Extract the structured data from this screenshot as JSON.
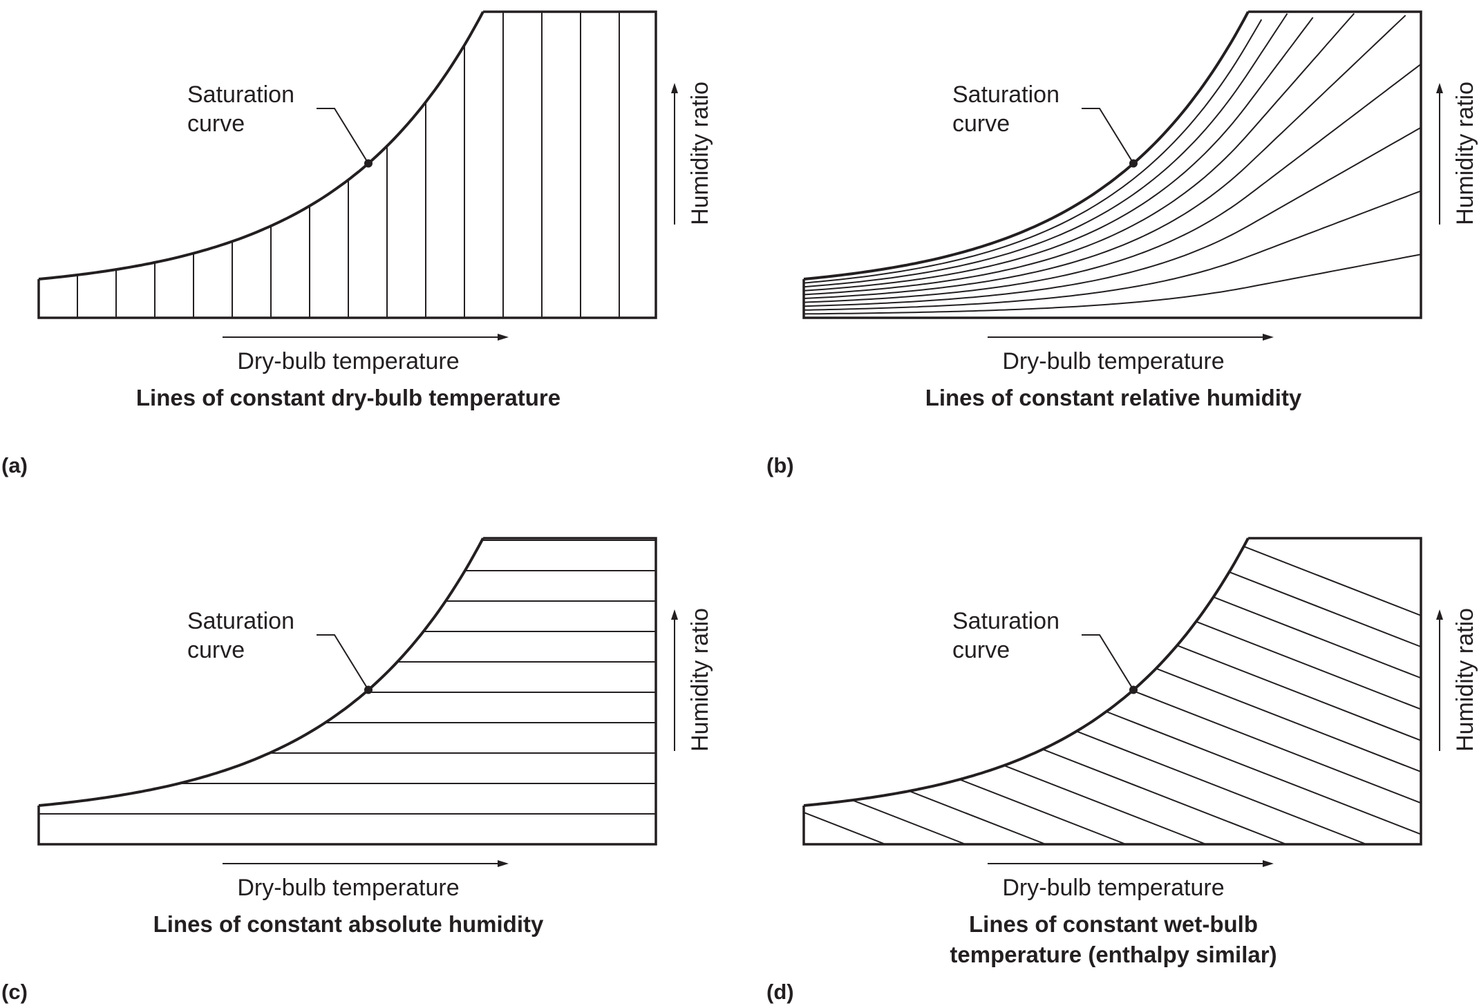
{
  "panels": [
    {
      "id": "a",
      "letter": "(a)",
      "caption_lines": [
        "Lines of constant dry-bulb temperature"
      ],
      "family": "dry-bulb",
      "saturation_label": [
        "Saturation",
        "curve"
      ],
      "x_axis_label": "Dry-bulb temperature",
      "y_axis_label": "Humidity ratio"
    },
    {
      "id": "b",
      "letter": "(b)",
      "caption_lines": [
        "Lines of constant relative humidity"
      ],
      "family": "relative-humidity",
      "saturation_label": [
        "Saturation",
        "curve"
      ],
      "x_axis_label": "Dry-bulb temperature",
      "y_axis_label": "Humidity ratio"
    },
    {
      "id": "c",
      "letter": "(c)",
      "caption_lines": [
        "Lines of constant absolute humidity"
      ],
      "family": "absolute-humidity",
      "saturation_label": [
        "Saturation",
        "curve"
      ],
      "x_axis_label": "Dry-bulb temperature",
      "y_axis_label": "Humidity ratio"
    },
    {
      "id": "d",
      "letter": "(d)",
      "caption_lines": [
        "Lines of constant wet-bulb",
        "temperature (enthalpy similar)"
      ],
      "family": "wet-bulb",
      "saturation_label": [
        "Saturation",
        "curve"
      ],
      "x_axis_label": "Dry-bulb temperature",
      "y_axis_label": "Humidity ratio"
    }
  ]
}
